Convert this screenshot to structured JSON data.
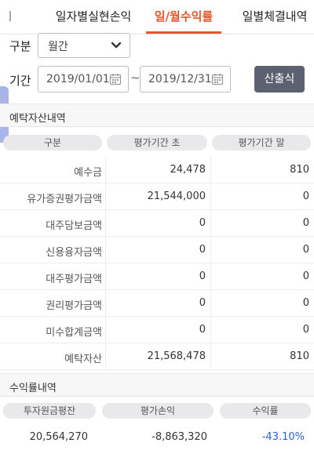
{
  "tabs": {
    "partial": "ㅣ",
    "items": [
      "일자별실현손익",
      "일/월수익률",
      "일별체결내역"
    ],
    "active_color": "#e2572c"
  },
  "filter": {
    "type_label": "구분",
    "type_value": "월간",
    "period_label": "기간",
    "start_date": "2019/01/01",
    "separator": "~",
    "end_date": "2019/12/31",
    "calc_button": "산출식"
  },
  "asset": {
    "section_title": "예탁자산내역",
    "headers": [
      "구분",
      "평가기간 초",
      "평가기간 말"
    ],
    "rows": [
      {
        "label": "예수금",
        "start": "24,478",
        "end": "810"
      },
      {
        "label": "유가증권평가금액",
        "start": "21,544,000",
        "end": "0"
      },
      {
        "label": "대주담보금액",
        "start": "0",
        "end": "0"
      },
      {
        "label": "신용융자금액",
        "start": "0",
        "end": "0"
      },
      {
        "label": "대주평가금액",
        "start": "0",
        "end": "0"
      },
      {
        "label": "권리평가금액",
        "start": "0",
        "end": "0"
      },
      {
        "label": "미수합계금액",
        "start": "0",
        "end": "0"
      },
      {
        "label": "예탁자산",
        "start": "21,568,478",
        "end": "810"
      }
    ]
  },
  "returns": {
    "section_title": "수익률내역",
    "headers": [
      "투자원금평잔",
      "평가손익",
      "수익률"
    ],
    "values": [
      "20,564,270",
      "-8,863,320",
      "-43.10%"
    ],
    "negative_color": "#2a64c5"
  }
}
